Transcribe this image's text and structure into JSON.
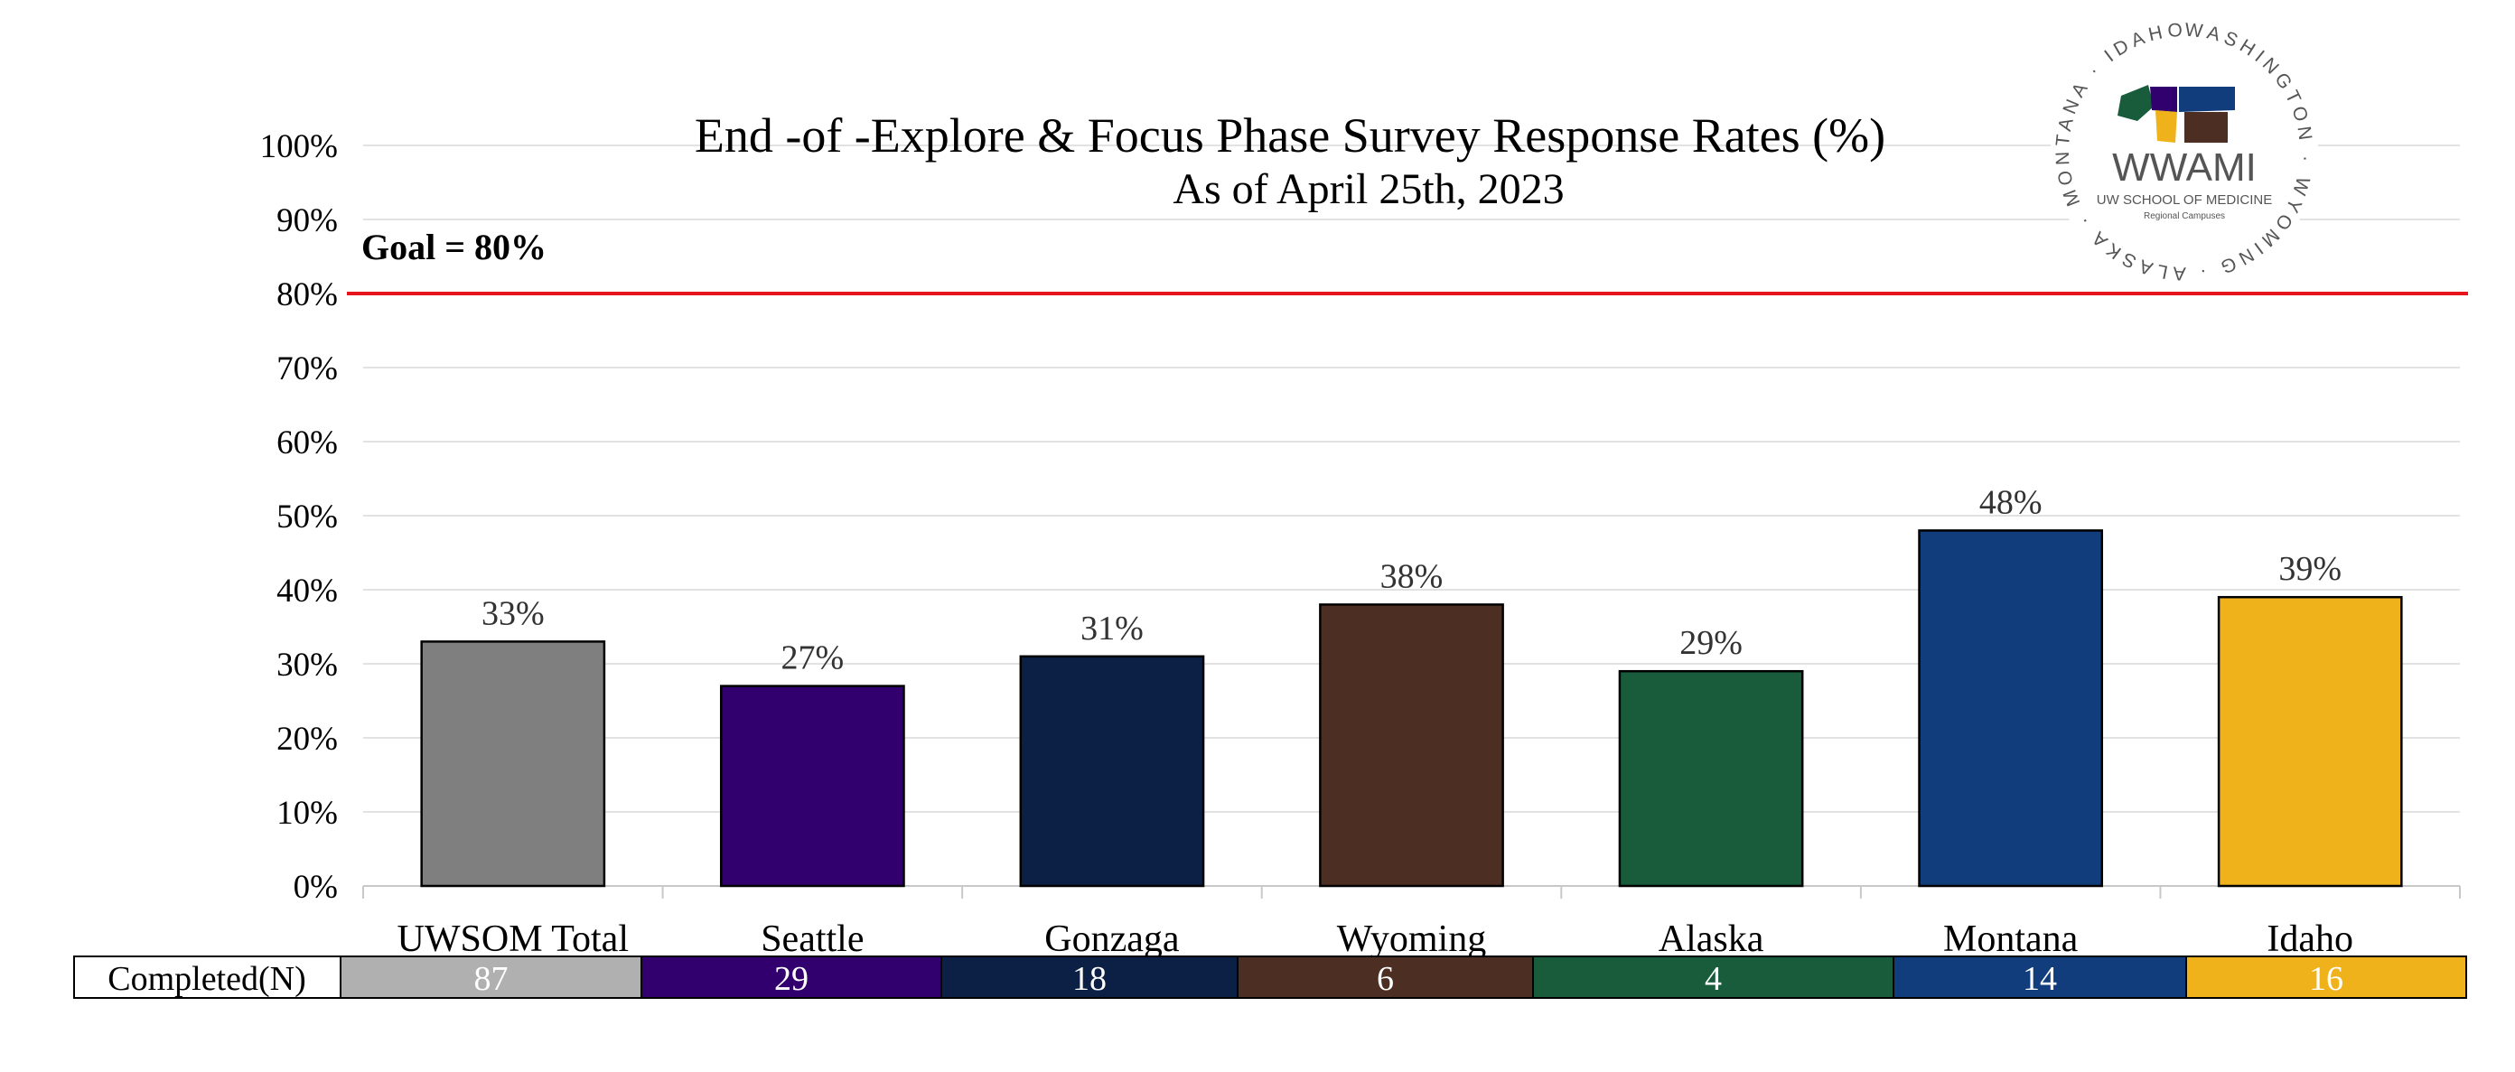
{
  "chart_data": {
    "type": "bar",
    "title": "End -of -Explore & Focus Phase Survey Response Rates (%)",
    "subtitle": "As of April 25th, 2023",
    "categories": [
      "UWSOM Total",
      "Seattle",
      "Gonzaga",
      "Wyoming",
      "Alaska",
      "Montana",
      "Idaho"
    ],
    "values": [
      33,
      27,
      31,
      38,
      29,
      48,
      39
    ],
    "data_labels": [
      "33%",
      "27%",
      "31%",
      "38%",
      "29%",
      "48%",
      "39%"
    ],
    "bar_colors": [
      "#7f7f7f",
      "#32006e",
      "#0c1f45",
      "#4d2e22",
      "#185c3c",
      "#123d7c",
      "#f0b21b"
    ],
    "ylim": [
      0,
      100
    ],
    "yticks": [
      "0%",
      "10%",
      "20%",
      "30%",
      "40%",
      "50%",
      "60%",
      "70%",
      "80%",
      "90%",
      "100%"
    ],
    "grid": true,
    "goal": {
      "value": 80,
      "label": "Goal = 80%",
      "color": "#e8141b"
    },
    "completed": {
      "row_label": "Completed(N)",
      "values": [
        "87",
        "29",
        "18",
        "6",
        "4",
        "14",
        "16"
      ],
      "cell_colors": [
        "#b0b0b0",
        "#32006e",
        "#0c1f45",
        "#4d2e22",
        "#185c3c",
        "#123d7c",
        "#f0b21b"
      ]
    }
  },
  "logo": {
    "name": "WWAMI",
    "subtitle": "UW SCHOOL OF MEDICINE",
    "tagline": "Regional Campuses",
    "ring_text": "WASHINGTON · WYOMING · ALASKA · MONTANA · IDAHO ·",
    "state_colors": [
      "#185c3c",
      "#32006e",
      "#123d7c",
      "#f0b21b",
      "#4d2e22"
    ]
  }
}
